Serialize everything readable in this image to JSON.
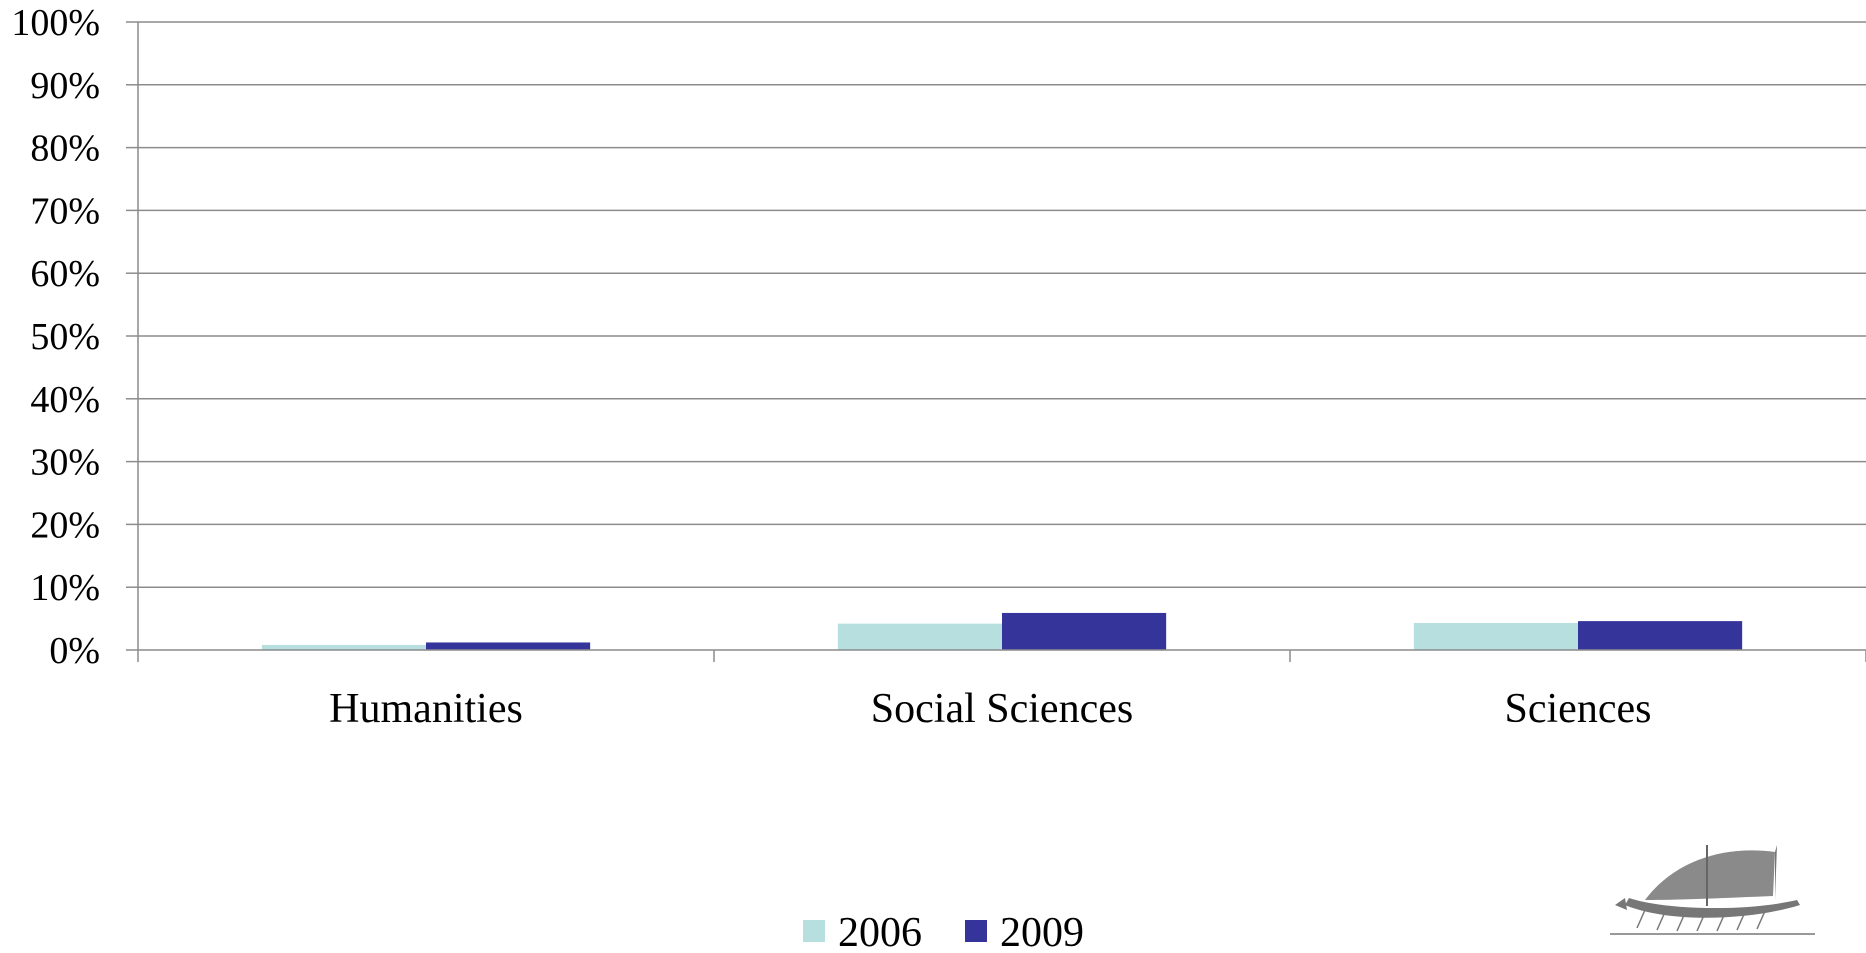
{
  "chart_data": {
    "type": "bar",
    "categories": [
      "Humanities",
      "Social Sciences",
      "Sciences"
    ],
    "series": [
      {
        "name": "2006",
        "color": "#b7dfe0",
        "values": [
          0.8,
          4.2,
          4.3
        ]
      },
      {
        "name": "2009",
        "color": "#35349b",
        "values": [
          1.2,
          5.9,
          4.6
        ]
      }
    ],
    "yticks": [
      "0%",
      "10%",
      "20%",
      "30%",
      "40%",
      "50%",
      "60%",
      "70%",
      "80%",
      "90%",
      "100%"
    ],
    "ylim": [
      0,
      100
    ],
    "grid": true,
    "legend": "bottom-center",
    "title": "",
    "xlabel": "",
    "ylabel": ""
  },
  "logo": {
    "icon": "trireme-ship-icon"
  }
}
